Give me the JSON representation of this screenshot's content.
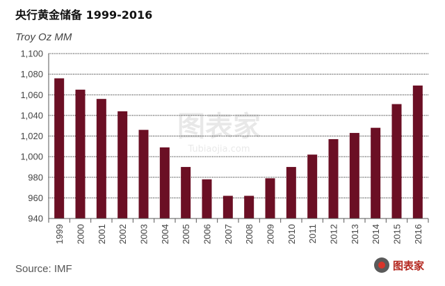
{
  "title": "央行黄金储备 1999-2016",
  "unit_label": "Troy Oz MM",
  "source": "Source: IMF",
  "watermark": {
    "main": "图表家",
    "sub": "Tubiaojia.com",
    "logo": "图表家"
  },
  "colors": {
    "bar": "#6b0f24",
    "grid": "#222222",
    "text": "#444444"
  },
  "chart_data": {
    "type": "bar",
    "title": "央行黄金储备 1999-2016",
    "ylabel": "Troy Oz MM",
    "xlabel": "",
    "categories": [
      "1999",
      "2000",
      "2001",
      "2002",
      "2003",
      "2004",
      "2005",
      "2006",
      "2007",
      "2008",
      "2009",
      "2010",
      "2011",
      "2012",
      "2013",
      "2014",
      "2015",
      "2016"
    ],
    "values": [
      1076,
      1065,
      1056,
      1044,
      1026,
      1009,
      990,
      978,
      962,
      962,
      979,
      990,
      1002,
      1017,
      1023,
      1028,
      1051,
      1069
    ],
    "ylim": [
      940,
      1100
    ],
    "yticks": [
      940,
      960,
      980,
      1000,
      1020,
      1040,
      1060,
      1080,
      1100
    ],
    "ytick_labels": [
      "940",
      "960",
      "980",
      "1,000",
      "1,020",
      "1,040",
      "1,060",
      "1,080",
      "1,100"
    ],
    "grid": true,
    "legend": "none"
  }
}
